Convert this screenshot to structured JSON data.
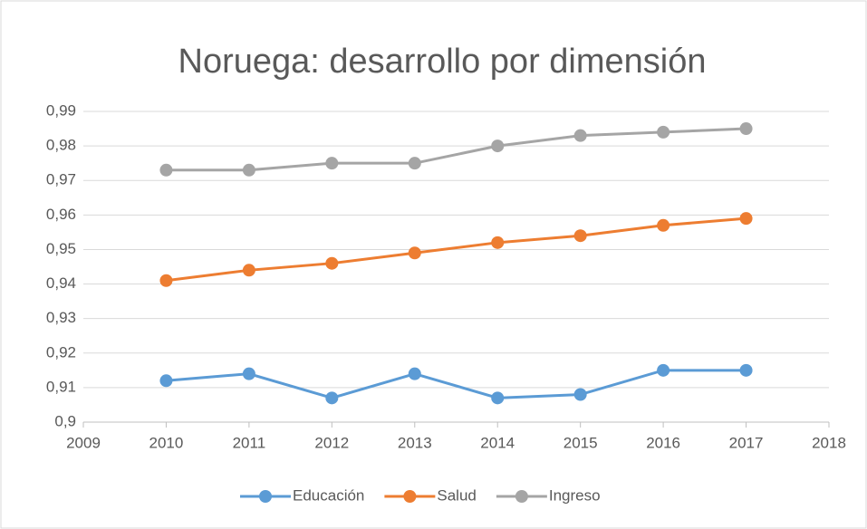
{
  "chart_data": {
    "type": "line",
    "title": "Noruega: desarrollo por dimensión",
    "x": [
      2010,
      2011,
      2012,
      2013,
      2014,
      2015,
      2016,
      2017
    ],
    "series": [
      {
        "name": "Educación",
        "color": "#5b9bd5",
        "values": [
          0.912,
          0.914,
          0.907,
          0.914,
          0.907,
          0.908,
          0.915,
          0.915
        ]
      },
      {
        "name": "Salud",
        "color": "#ed7d31",
        "values": [
          0.941,
          0.944,
          0.946,
          0.949,
          0.952,
          0.954,
          0.957,
          0.959
        ]
      },
      {
        "name": "Ingreso",
        "color": "#a5a5a5",
        "values": [
          0.973,
          0.973,
          0.975,
          0.975,
          0.98,
          0.983,
          0.984,
          0.985
        ]
      }
    ],
    "xlim": [
      2009,
      2018
    ],
    "xticks": [
      2009,
      2010,
      2011,
      2012,
      2013,
      2014,
      2015,
      2016,
      2017,
      2018
    ],
    "ylim": [
      0.9,
      0.99
    ],
    "yticks": [
      {
        "value": 0.9,
        "label": "0,9"
      },
      {
        "value": 0.91,
        "label": "0,91"
      },
      {
        "value": 0.92,
        "label": "0,92"
      },
      {
        "value": 0.93,
        "label": "0,93"
      },
      {
        "value": 0.94,
        "label": "0,94"
      },
      {
        "value": 0.95,
        "label": "0,95"
      },
      {
        "value": 0.96,
        "label": "0,96"
      },
      {
        "value": 0.97,
        "label": "0,97"
      },
      {
        "value": 0.98,
        "label": "0,98"
      },
      {
        "value": 0.99,
        "label": "0,99"
      }
    ],
    "grid": true,
    "legend": "bottom"
  }
}
